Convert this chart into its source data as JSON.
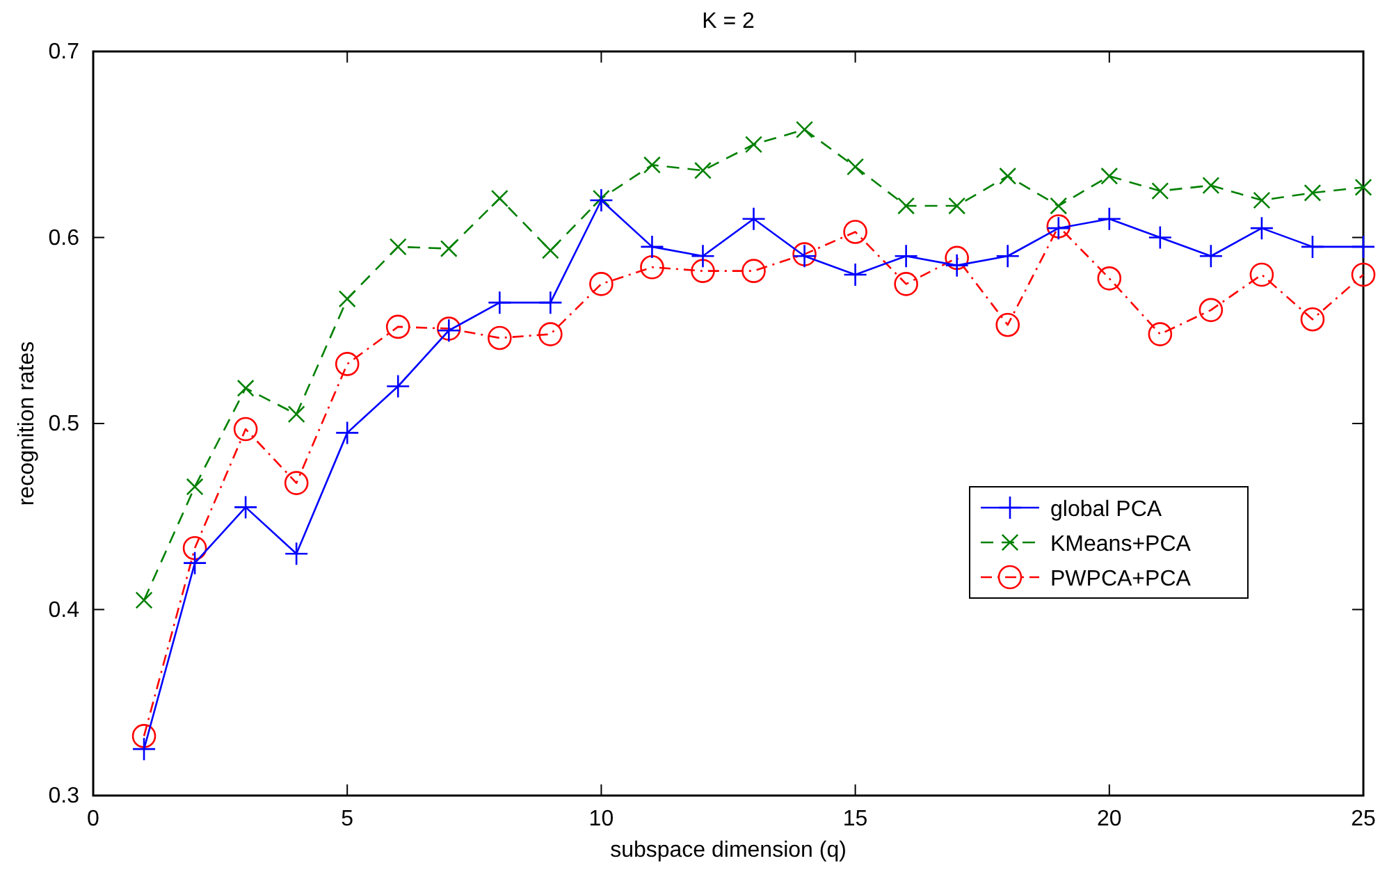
{
  "chart_data": {
    "type": "line",
    "title": "K = 2",
    "xlabel": "subspace dimension (q)",
    "ylabel": "recognition rates",
    "x": [
      1,
      2,
      3,
      4,
      5,
      6,
      7,
      8,
      9,
      10,
      11,
      12,
      13,
      14,
      15,
      16,
      17,
      18,
      19,
      20,
      21,
      22,
      23,
      24,
      25
    ],
    "xlim": [
      0,
      25
    ],
    "xticks": [
      0,
      5,
      10,
      15,
      20,
      25
    ],
    "ylim": [
      0.3,
      0.7
    ],
    "yticks": [
      0.3,
      0.4,
      0.5,
      0.6,
      0.7
    ],
    "grid": false,
    "legend": "right",
    "series": [
      {
        "name": "global PCA",
        "color": "#0000ff",
        "marker": "plus",
        "line_style": "solid",
        "values": [
          0.325,
          0.425,
          0.455,
          0.43,
          0.495,
          0.52,
          0.55,
          0.565,
          0.565,
          0.62,
          0.595,
          0.59,
          0.61,
          0.59,
          0.58,
          0.59,
          0.585,
          0.59,
          0.605,
          0.61,
          0.6,
          0.59,
          0.605,
          0.595,
          0.595
        ]
      },
      {
        "name": "KMeans+PCA",
        "color": "#008000",
        "marker": "cross",
        "line_style": "dashed",
        "values": [
          0.405,
          0.466,
          0.519,
          0.505,
          0.567,
          0.595,
          0.594,
          0.621,
          0.593,
          0.621,
          0.639,
          0.636,
          0.65,
          0.658,
          0.638,
          0.617,
          0.617,
          0.633,
          0.617,
          0.633,
          0.625,
          0.628,
          0.62,
          0.624,
          0.627
        ]
      },
      {
        "name": "PWPCA+PCA",
        "color": "#ff0000",
        "marker": "circle",
        "line_style": "dotted",
        "values": [
          0.332,
          0.433,
          0.497,
          0.468,
          0.532,
          0.552,
          0.551,
          0.546,
          0.548,
          0.575,
          0.584,
          0.582,
          0.582,
          0.591,
          0.603,
          0.575,
          0.589,
          0.553,
          0.606,
          0.578,
          0.548,
          0.561,
          0.58,
          0.556,
          0.58
        ]
      }
    ]
  }
}
